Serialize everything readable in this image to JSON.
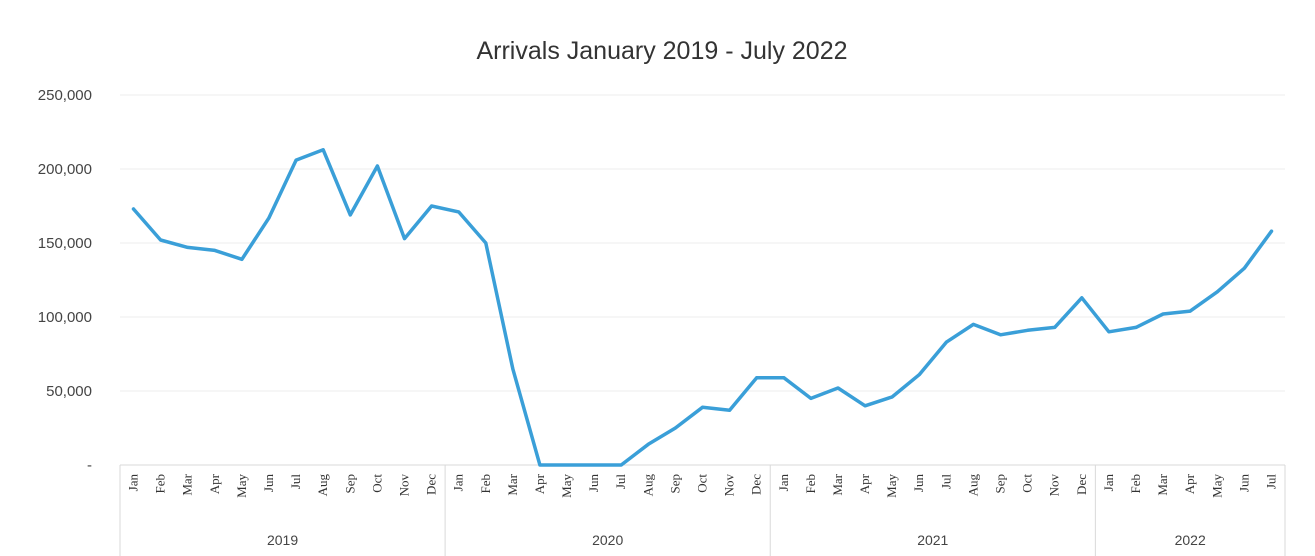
{
  "chart_data": {
    "type": "line",
    "title": "Arrivals January 2019 - July 2022",
    "xlabel": "",
    "ylabel": "",
    "ylim": [
      0,
      250000
    ],
    "yticks": [
      0,
      50000,
      100000,
      150000,
      200000,
      250000
    ],
    "ytick_labels": [
      "-",
      "50,000",
      "100,000",
      "150,000",
      "200,000",
      "250,000"
    ],
    "grid": true,
    "legend": "none",
    "color": "#3a9fd8",
    "categories": [
      "Jan",
      "Feb",
      "Mar",
      "Apr",
      "May",
      "Jun",
      "Jul",
      "Aug",
      "Sep",
      "Oct",
      "Nov",
      "Dec",
      "Jan",
      "Feb",
      "Mar",
      "Apr",
      "May",
      "Jun",
      "Jul",
      "Aug",
      "Sep",
      "Oct",
      "Nov",
      "Dec",
      "Jan",
      "Feb",
      "Mar",
      "Apr",
      "May",
      "Jun",
      "Jul",
      "Aug",
      "Sep",
      "Oct",
      "Nov",
      "Dec",
      "Jan",
      "Feb",
      "Mar",
      "Apr",
      "May",
      "Jun",
      "Jul"
    ],
    "year_groups": [
      {
        "label": "2019",
        "count": 12
      },
      {
        "label": "2020",
        "count": 12
      },
      {
        "label": "2021",
        "count": 12
      },
      {
        "label": "2022",
        "count": 7
      }
    ],
    "values": [
      173000,
      152000,
      147000,
      145000,
      139000,
      167000,
      206000,
      213000,
      169000,
      202000,
      153000,
      175000,
      171000,
      150000,
      65000,
      0,
      0,
      0,
      0,
      14000,
      25000,
      39000,
      37000,
      59000,
      59000,
      45000,
      52000,
      40000,
      46000,
      61000,
      83000,
      95000,
      88000,
      91000,
      93000,
      113000,
      90000,
      93000,
      102000,
      104000,
      117000,
      133000,
      158000
    ]
  }
}
